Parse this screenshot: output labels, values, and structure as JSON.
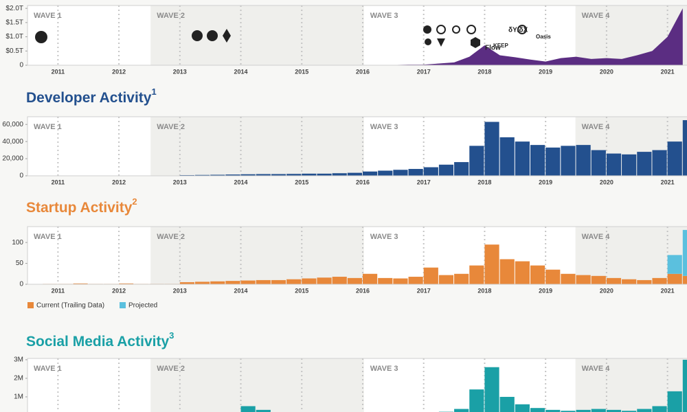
{
  "chart_data": [
    {
      "type": "area",
      "color": "#5b2d82",
      "x": [
        2010.5,
        2010.75,
        2011,
        2011.25,
        2011.5,
        2011.75,
        2012,
        2012.25,
        2012.5,
        2012.75,
        2013,
        2013.25,
        2013.5,
        2013.75,
        2014,
        2014.25,
        2014.5,
        2014.75,
        2015,
        2015.25,
        2015.5,
        2015.75,
        2016,
        2016.25,
        2016.5,
        2016.75,
        2017,
        2017.25,
        2017.5,
        2017.75,
        2018,
        2018.25,
        2018.5,
        2018.75,
        2019,
        2019.25,
        2019.5,
        2019.75,
        2020,
        2020.25,
        2020.5,
        2020.75,
        2021,
        2021.25
      ],
      "values": [
        0,
        0,
        0,
        0,
        0,
        0,
        0,
        0,
        0,
        0.01,
        0.01,
        0.01,
        0.01,
        0.01,
        0.01,
        0.01,
        0.01,
        0.01,
        0.01,
        0.01,
        0.01,
        0.01,
        0.01,
        0.01,
        0.01,
        0.02,
        0.02,
        0.06,
        0.1,
        0.3,
        0.7,
        0.35,
        0.28,
        0.2,
        0.13,
        0.25,
        0.3,
        0.22,
        0.25,
        0.22,
        0.35,
        0.5,
        1.0,
        2.0
      ],
      "xlim": [
        2010.5,
        2021.32
      ],
      "xticks": [
        2011,
        2012,
        2013,
        2014,
        2015,
        2016,
        2017,
        2018,
        2019,
        2020,
        2021
      ],
      "ylim": [
        0,
        2.1
      ],
      "yticks": [
        0,
        {
          "value": 0.5,
          "label": "$0.5T"
        },
        {
          "value": 1.0,
          "label": "$1.0T"
        },
        {
          "value": 1.5,
          "label": "$1.5T"
        },
        {
          "value": 2.0,
          "label": "$2.0T"
        }
      ],
      "waves": [
        {
          "label": "WAVE 1",
          "start": 2010.5
        },
        {
          "label": "WAVE 2",
          "start": 2012.52
        },
        {
          "label": "WAVE 3",
          "start": 2016.02
        },
        {
          "label": "WAVE 4",
          "start": 2019.49
        }
      ],
      "logo_labels": [
        "Flow",
        "δY/δX",
        "Oasis",
        "KEEP"
      ]
    },
    {
      "type": "bar",
      "title": "Developer Activity",
      "footnote": "1",
      "color": "#23508e",
      "x": [
        2010.5,
        2010.75,
        2011,
        2011.25,
        2011.5,
        2011.75,
        2012,
        2012.25,
        2012.5,
        2012.75,
        2013,
        2013.25,
        2013.5,
        2013.75,
        2014,
        2014.25,
        2014.5,
        2014.75,
        2015,
        2015.25,
        2015.5,
        2015.75,
        2016,
        2016.25,
        2016.5,
        2016.75,
        2017,
        2017.25,
        2017.5,
        2017.75,
        2018,
        2018.25,
        2018.5,
        2018.75,
        2019,
        2019.25,
        2019.5,
        2019.75,
        2020,
        2020.25,
        2020.5,
        2020.75,
        2021,
        2021.25
      ],
      "values": [
        300,
        300,
        400,
        400,
        300,
        300,
        400,
        300,
        300,
        300,
        800,
        1000,
        1200,
        1500,
        1800,
        2000,
        2000,
        2200,
        2500,
        2500,
        3000,
        3500,
        5000,
        6000,
        7000,
        8000,
        10000,
        13000,
        16000,
        35000,
        63000,
        45000,
        40000,
        36000,
        33000,
        35000,
        36000,
        30000,
        26000,
        25000,
        28000,
        30000,
        40000,
        65000
      ],
      "xlim": [
        2010.5,
        2021.32
      ],
      "xticks": [
        2011,
        2012,
        2013,
        2014,
        2015,
        2016,
        2017,
        2018,
        2019,
        2020,
        2021
      ],
      "ylim": [
        0,
        69000
      ],
      "yticks": [
        0,
        {
          "value": 20000,
          "label": "20,000"
        },
        {
          "value": 40000,
          "label": "40,000"
        },
        {
          "value": 60000,
          "label": "60,000"
        }
      ],
      "waves": [
        {
          "label": "WAVE 1",
          "start": 2010.5
        },
        {
          "label": "WAVE 2",
          "start": 2012.52
        },
        {
          "label": "WAVE 3",
          "start": 2016.02
        },
        {
          "label": "WAVE 4",
          "start": 2019.49
        }
      ]
    },
    {
      "type": "stacked_bar",
      "title": "Startup Activity",
      "footnote": "2",
      "x": [
        2010.5,
        2010.75,
        2011,
        2011.25,
        2011.5,
        2011.75,
        2012,
        2012.25,
        2012.5,
        2012.75,
        2013,
        2013.25,
        2013.5,
        2013.75,
        2014,
        2014.25,
        2014.5,
        2014.75,
        2015,
        2015.25,
        2015.5,
        2015.75,
        2016,
        2016.25,
        2016.5,
        2016.75,
        2017,
        2017.25,
        2017.5,
        2017.75,
        2018,
        2018.25,
        2018.5,
        2018.75,
        2019,
        2019.25,
        2019.5,
        2019.75,
        2020,
        2020.25,
        2020.5,
        2020.75,
        2021,
        2021.25
      ],
      "series": [
        {
          "name": "Current (Trailing Data)",
          "color": "#e8883a",
          "values": [
            0,
            1,
            1,
            2,
            1,
            1,
            2,
            1,
            1,
            1,
            5,
            6,
            7,
            8,
            9,
            10,
            10,
            12,
            14,
            16,
            18,
            15,
            25,
            15,
            14,
            18,
            40,
            22,
            25,
            45,
            95,
            60,
            55,
            45,
            35,
            25,
            22,
            20,
            15,
            12,
            10,
            15,
            25,
            20
          ]
        },
        {
          "name": "Projected",
          "color": "#5bc0de",
          "values": [
            0,
            0,
            0,
            0,
            0,
            0,
            0,
            0,
            0,
            0,
            0,
            0,
            0,
            0,
            0,
            0,
            0,
            0,
            0,
            0,
            0,
            0,
            0,
            0,
            0,
            0,
            0,
            0,
            0,
            0,
            0,
            0,
            0,
            0,
            0,
            0,
            0,
            0,
            0,
            0,
            0,
            0,
            45,
            110
          ]
        }
      ],
      "xlim": [
        2010.5,
        2021.32
      ],
      "xticks": [
        2011,
        2012,
        2013,
        2014,
        2015,
        2016,
        2017,
        2018,
        2019,
        2020,
        2021
      ],
      "ylim": [
        0,
        138
      ],
      "yticks": [
        0,
        50,
        100
      ],
      "waves": [
        {
          "label": "WAVE 1",
          "start": 2010.5
        },
        {
          "label": "WAVE 2",
          "start": 2012.52
        },
        {
          "label": "WAVE 3",
          "start": 2016.02
        },
        {
          "label": "WAVE 4",
          "start": 2019.49
        }
      ]
    },
    {
      "type": "bar",
      "title": "Social Media Activity",
      "footnote": "3",
      "color": "#1aa0a6",
      "x": [
        2010.5,
        2010.75,
        2011,
        2011.25,
        2011.5,
        2011.75,
        2012,
        2012.25,
        2012.5,
        2012.75,
        2013,
        2013.25,
        2013.5,
        2013.75,
        2014,
        2014.25,
        2014.5,
        2014.75,
        2015,
        2015.25,
        2015.5,
        2015.75,
        2016,
        2016.25,
        2016.5,
        2016.75,
        2017,
        2017.25,
        2017.5,
        2017.75,
        2018,
        2018.25,
        2018.5,
        2018.75,
        2019,
        2019.25,
        2019.5,
        2019.75,
        2020,
        2020.25,
        2020.5,
        2020.75,
        2021,
        2021.25
      ],
      "values": [
        0.01,
        0.01,
        0.01,
        0.01,
        0.01,
        0.01,
        0.01,
        0.01,
        0.01,
        0.01,
        0.02,
        0.03,
        0.05,
        0.1,
        0.5,
        0.3,
        0.15,
        0.1,
        0.08,
        0.06,
        0.05,
        0.05,
        0.05,
        0.06,
        0.07,
        0.1,
        0.15,
        0.2,
        0.35,
        1.4,
        2.6,
        1.0,
        0.6,
        0.4,
        0.3,
        0.25,
        0.3,
        0.35,
        0.3,
        0.25,
        0.35,
        0.5,
        1.3,
        3.0
      ],
      "xlim": [
        2010.5,
        2021.32
      ],
      "xticks": [
        2011,
        2012,
        2013,
        2014,
        2015,
        2016,
        2017,
        2018,
        2019,
        2020,
        2021
      ],
      "ylim": [
        0,
        3.07
      ],
      "yticks": [
        {
          "value": 1,
          "label": "1M"
        },
        {
          "value": 2,
          "label": "2M"
        },
        {
          "value": 3,
          "label": "3M"
        }
      ],
      "waves": [
        {
          "label": "WAVE 1",
          "start": 2010.5
        },
        {
          "label": "WAVE 2",
          "start": 2012.52
        },
        {
          "label": "WAVE 3",
          "start": 2016.02
        },
        {
          "label": "WAVE 4",
          "start": 2019.49
        }
      ]
    }
  ]
}
